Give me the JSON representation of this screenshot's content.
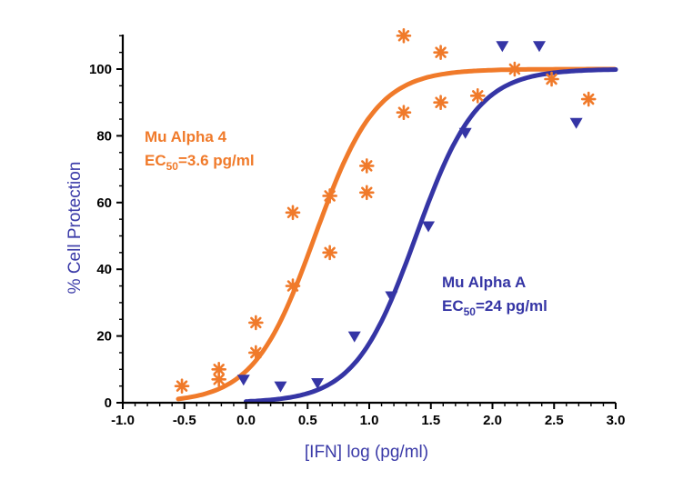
{
  "chart_data": {
    "type": "scatter",
    "xlabel": "[IFN] log (pg/ml)",
    "ylabel": "% Cell Protection",
    "xlim": [
      -1.0,
      3.0
    ],
    "ylim": [
      0,
      110
    ],
    "xticks": [
      -1.0,
      -0.5,
      0.0,
      0.5,
      1.0,
      1.5,
      2.0,
      2.5,
      3.0
    ],
    "xtick_labels": [
      "-1.0",
      "-0.5",
      "0.0",
      "0.5",
      "1.0",
      "1.5",
      "2.0",
      "2.5",
      "3.0"
    ],
    "yticks": [
      0,
      20,
      40,
      60,
      80,
      100
    ],
    "ytick_labels": [
      "0",
      "20",
      "40",
      "60",
      "80",
      "100"
    ],
    "axis_color": "#000000",
    "label_color": "#3b3ba8",
    "series": [
      {
        "name": "Mu Alpha 4",
        "annotation_lines": [
          {
            "main": "Mu Alpha 4"
          },
          {
            "main": "EC",
            "sub": "50",
            "rest": "=3.6 pg/ml"
          }
        ],
        "color": "#f07a2a",
        "marker": "asterisk",
        "ec50_log": 0.56,
        "points": [
          [
            -0.52,
            5
          ],
          [
            -0.22,
            10
          ],
          [
            -0.22,
            7
          ],
          [
            0.08,
            24
          ],
          [
            0.08,
            15
          ],
          [
            0.38,
            57
          ],
          [
            0.38,
            35
          ],
          [
            0.68,
            62
          ],
          [
            0.68,
            45
          ],
          [
            0.98,
            71
          ],
          [
            0.98,
            63
          ],
          [
            1.28,
            110
          ],
          [
            1.28,
            87
          ],
          [
            1.58,
            105
          ],
          [
            1.58,
            90
          ],
          [
            1.88,
            92
          ],
          [
            2.18,
            100
          ],
          [
            2.48,
            97
          ],
          [
            2.78,
            91
          ]
        ]
      },
      {
        "name": "Mu Alpha A",
        "annotation_lines": [
          {
            "main": "Mu Alpha A"
          },
          {
            "main": "EC",
            "sub": "50",
            "rest": "=24 pg/ml"
          }
        ],
        "color": "#3535a5",
        "marker": "triangle-down",
        "ec50_log": 1.38,
        "points": [
          [
            -0.02,
            7
          ],
          [
            0.28,
            5
          ],
          [
            0.58,
            6
          ],
          [
            0.88,
            20
          ],
          [
            1.18,
            32
          ],
          [
            1.48,
            53
          ],
          [
            1.78,
            81
          ],
          [
            2.08,
            107
          ],
          [
            2.38,
            107
          ],
          [
            2.68,
            84
          ]
        ]
      }
    ]
  }
}
